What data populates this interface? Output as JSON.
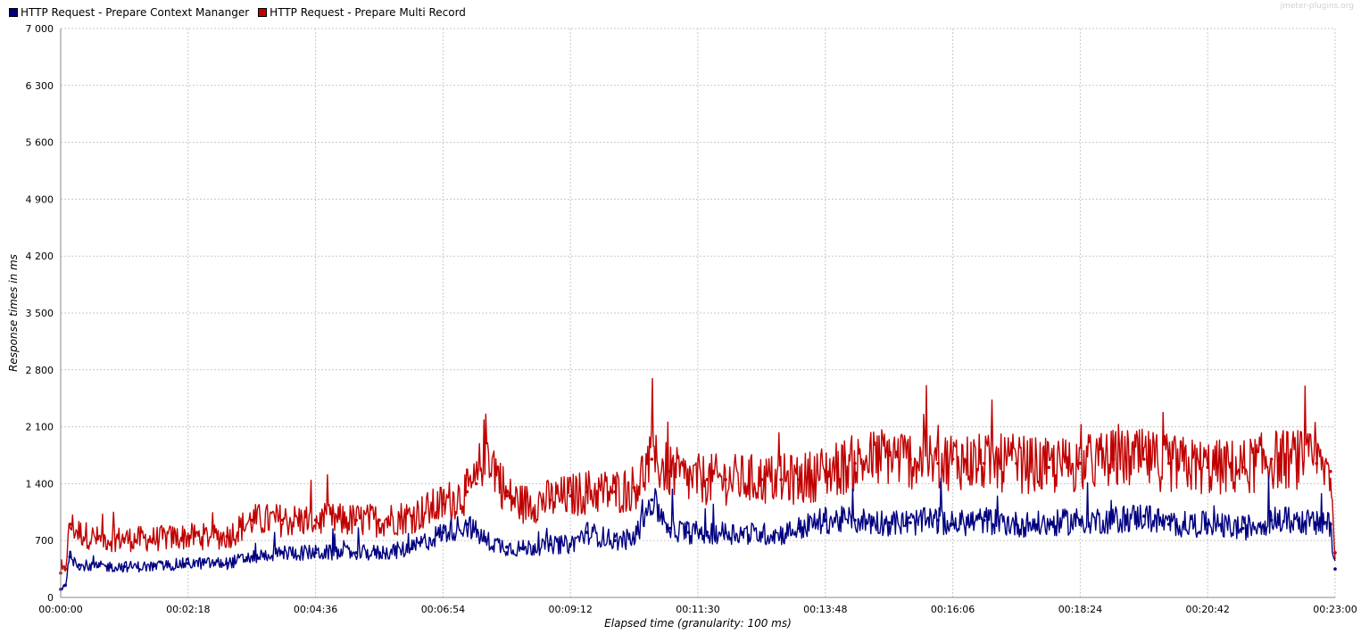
{
  "watermark": "jmeter-plugins.org",
  "chart_data": {
    "type": "line",
    "title": "",
    "xlabel": "Elapsed time (granularity: 100 ms)",
    "ylabel": "Response times in ms",
    "ylim": [
      0,
      7000
    ],
    "xlim_seconds": [
      0,
      1380
    ],
    "y_ticks": [
      "0",
      "700",
      "1 400",
      "2 100",
      "2 800",
      "3 500",
      "4 200",
      "4 900",
      "5 600",
      "6 300",
      "7 000"
    ],
    "x_ticks": [
      "00:00:00",
      "00:02:18",
      "00:04:36",
      "00:06:54",
      "00:09:12",
      "00:11:30",
      "00:13:48",
      "00:16:06",
      "00:18:24",
      "00:20:42",
      "00:23:00"
    ],
    "grid": true,
    "legend_position": "top-left",
    "series": [
      {
        "name": "HTTP Request - Prepare Context Mananger",
        "color": "#000080",
        "x_seconds": [
          0,
          5,
          10,
          20,
          40,
          69,
          100,
          138,
          180,
          207,
          240,
          276,
          320,
          345,
          380,
          414,
          440,
          460,
          483,
          500,
          530,
          552,
          570,
          600,
          621,
          640,
          660,
          680,
          700,
          720,
          759,
          780,
          800,
          828,
          860,
          897,
          920,
          950,
          966,
          1000,
          1035,
          1070,
          1104,
          1140,
          1173,
          1200,
          1242,
          1280,
          1311,
          1340,
          1360,
          1375,
          1380
        ],
        "values": [
          100,
          150,
          500,
          400,
          380,
          380,
          380,
          420,
          420,
          500,
          550,
          550,
          550,
          550,
          600,
          800,
          900,
          700,
          620,
          600,
          650,
          650,
          800,
          700,
          720,
          1200,
          850,
          800,
          800,
          800,
          780,
          780,
          850,
          950,
          950,
          920,
          920,
          950,
          900,
          950,
          900,
          900,
          950,
          950,
          1000,
          900,
          900,
          850,
          950,
          950,
          900,
          900,
          350
        ]
      },
      {
        "name": "HTTP Request - Prepare Multi Record",
        "color": "#C00000",
        "x_seconds": [
          0,
          5,
          10,
          20,
          40,
          69,
          100,
          138,
          180,
          207,
          240,
          276,
          320,
          345,
          380,
          414,
          440,
          450,
          460,
          483,
          500,
          530,
          552,
          570,
          600,
          621,
          640,
          660,
          680,
          700,
          720,
          759,
          780,
          800,
          828,
          860,
          897,
          920,
          950,
          966,
          1000,
          1035,
          1070,
          1104,
          1140,
          1173,
          1200,
          1242,
          1280,
          1311,
          1340,
          1360,
          1375,
          1380
        ],
        "values": [
          300,
          350,
          900,
          800,
          720,
          720,
          720,
          750,
          750,
          950,
          950,
          950,
          950,
          950,
          1000,
          1150,
          1300,
          1400,
          1900,
          1250,
          1150,
          1200,
          1250,
          1300,
          1300,
          1350,
          1700,
          1550,
          1450,
          1450,
          1450,
          1450,
          1450,
          1450,
          1550,
          1650,
          1750,
          1700,
          1650,
          1700,
          1650,
          1650,
          1600,
          1650,
          1700,
          1700,
          1650,
          1600,
          1600,
          1700,
          1700,
          1650,
          1550,
          550
        ]
      }
    ]
  }
}
